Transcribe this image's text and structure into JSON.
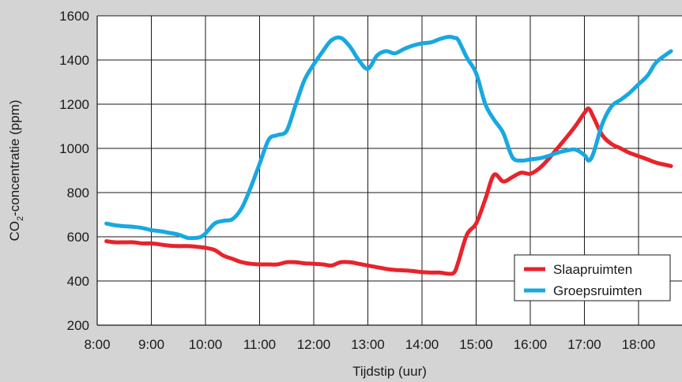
{
  "chart_data": {
    "type": "line",
    "title": "",
    "xlabel": "Tijdstip (uur)",
    "ylabel": "CO2-concentratie (ppm)",
    "ylabel_main": "CO",
    "ylabel_sub": "2",
    "ylabel_rest": "-concentratie (ppm)",
    "x_ticks": [
      "8:00",
      "9:00",
      "10:00",
      "11:00",
      "12:00",
      "13:00",
      "14:00",
      "15:00",
      "16:00",
      "17:00",
      "18:00"
    ],
    "y_ticks": [
      "200",
      "400",
      "600",
      "800",
      "1000",
      "1200",
      "1400",
      "1600"
    ],
    "xlim": [
      8.0,
      18.6
    ],
    "ylim": [
      200,
      1600
    ],
    "grid": true,
    "legend_position": "bottom-right",
    "series": [
      {
        "name": "Slaapruimten",
        "color": "#e8232b",
        "x": [
          8.17,
          8.33,
          8.5,
          8.67,
          8.83,
          9.0,
          9.17,
          9.33,
          9.5,
          9.67,
          9.83,
          10.0,
          10.17,
          10.33,
          10.5,
          10.67,
          10.83,
          11.0,
          11.17,
          11.33,
          11.5,
          11.67,
          11.83,
          12.0,
          12.17,
          12.33,
          12.5,
          12.67,
          12.83,
          13.0,
          13.17,
          13.33,
          13.5,
          13.67,
          13.83,
          14.0,
          14.17,
          14.33,
          14.5,
          14.6,
          14.67,
          14.83,
          15.0,
          15.17,
          15.33,
          15.5,
          15.67,
          15.83,
          16.0,
          16.17,
          16.33,
          16.5,
          16.67,
          16.83,
          17.0,
          17.08,
          17.17,
          17.33,
          17.5,
          17.67,
          17.83,
          18.0,
          18.17,
          18.33,
          18.6
        ],
        "values": [
          580,
          575,
          575,
          575,
          570,
          570,
          565,
          560,
          558,
          558,
          555,
          550,
          540,
          515,
          500,
          485,
          478,
          475,
          475,
          475,
          485,
          485,
          480,
          478,
          475,
          470,
          485,
          485,
          478,
          470,
          462,
          455,
          450,
          448,
          445,
          440,
          438,
          438,
          432,
          440,
          485,
          610,
          660,
          770,
          880,
          850,
          870,
          890,
          885,
          910,
          950,
          1000,
          1050,
          1100,
          1160,
          1180,
          1140,
          1060,
          1020,
          1000,
          980,
          965,
          950,
          935,
          920
        ]
      },
      {
        "name": "Groepsruimten",
        "color": "#18a8e0",
        "x": [
          8.17,
          8.33,
          8.5,
          8.67,
          8.83,
          9.0,
          9.17,
          9.33,
          9.5,
          9.67,
          9.83,
          9.92,
          10.0,
          10.17,
          10.33,
          10.5,
          10.67,
          10.83,
          11.0,
          11.17,
          11.33,
          11.5,
          11.67,
          11.83,
          12.0,
          12.17,
          12.33,
          12.5,
          12.67,
          12.83,
          13.0,
          13.17,
          13.33,
          13.5,
          13.67,
          13.83,
          14.0,
          14.17,
          14.33,
          14.5,
          14.6,
          14.67,
          14.83,
          15.0,
          15.17,
          15.33,
          15.5,
          15.67,
          15.83,
          16.0,
          16.17,
          16.33,
          16.5,
          16.67,
          16.83,
          17.0,
          17.08,
          17.17,
          17.33,
          17.5,
          17.67,
          17.83,
          18.0,
          18.17,
          18.33,
          18.6
        ],
        "values": [
          660,
          652,
          648,
          645,
          640,
          630,
          625,
          618,
          610,
          595,
          595,
          600,
          615,
          660,
          672,
          680,
          730,
          820,
          930,
          1040,
          1060,
          1080,
          1200,
          1310,
          1380,
          1440,
          1490,
          1500,
          1460,
          1400,
          1360,
          1420,
          1440,
          1430,
          1450,
          1465,
          1475,
          1480,
          1495,
          1505,
          1500,
          1490,
          1410,
          1340,
          1200,
          1130,
          1070,
          960,
          945,
          950,
          955,
          965,
          980,
          990,
          995,
          970,
          945,
          980,
          1110,
          1190,
          1220,
          1250,
          1290,
          1330,
          1390,
          1440
        ]
      }
    ]
  }
}
